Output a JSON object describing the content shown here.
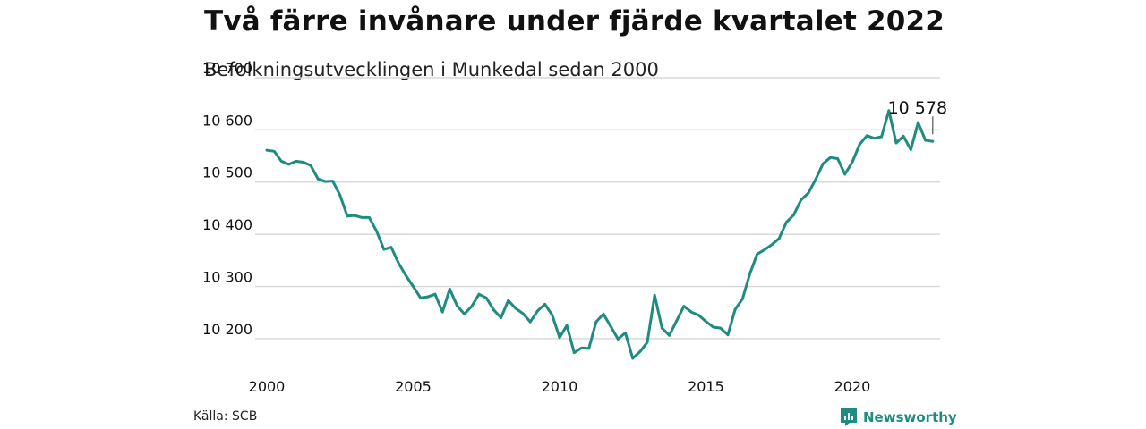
{
  "header": {
    "title": "Två färre invånare under fjärde kvartalet 2022",
    "subtitle": "Befolkningsutvecklingen i Munkedal sedan 2000"
  },
  "footer": {
    "source": "Källa: SCB",
    "brand": "Newsworthy",
    "brand_color": "#1e8c7e"
  },
  "chart_data": {
    "type": "line",
    "title": "Två färre invånare under fjärde kvartalet 2022",
    "subtitle": "Befolkningsutvecklingen i Munkedal sedan 2000",
    "xlabel": "",
    "ylabel": "",
    "x_unit": "quarter",
    "xlim": [
      2000.0,
      2023.0
    ],
    "ylim": [
      10150,
      10700
    ],
    "yticks": [
      10200,
      10300,
      10400,
      10500,
      10600,
      10700
    ],
    "ytick_labels": [
      "10 200",
      "10 300",
      "10 400",
      "10 500",
      "10 600",
      "10 700"
    ],
    "xticks": [
      2000,
      2005,
      2010,
      2015,
      2020
    ],
    "xtick_labels": [
      "2000",
      "2005",
      "2010",
      "2015",
      "2020"
    ],
    "grid": true,
    "line_color": "#1e8c7e",
    "annotation": {
      "text": "10 578",
      "x": "2022-Q4",
      "y": 10578
    },
    "series": [
      {
        "x": [
          "2000-Q1",
          "2000-Q2",
          "2000-Q3",
          "2000-Q4",
          "2001-Q1",
          "2001-Q2",
          "2001-Q3",
          "2001-Q4",
          "2002-Q1",
          "2002-Q2",
          "2002-Q3",
          "2002-Q4",
          "2003-Q1",
          "2003-Q2",
          "2003-Q3",
          "2003-Q4",
          "2004-Q1",
          "2004-Q2",
          "2004-Q3",
          "2004-Q4",
          "2005-Q1",
          "2005-Q2",
          "2005-Q3",
          "2005-Q4",
          "2006-Q1",
          "2006-Q2",
          "2006-Q3",
          "2006-Q4",
          "2007-Q1",
          "2007-Q2",
          "2007-Q3",
          "2007-Q4",
          "2008-Q1",
          "2008-Q2",
          "2008-Q3",
          "2008-Q4",
          "2009-Q1",
          "2009-Q2",
          "2009-Q3",
          "2009-Q4",
          "2010-Q1",
          "2010-Q2",
          "2010-Q3",
          "2010-Q4",
          "2011-Q1",
          "2011-Q2",
          "2011-Q3",
          "2011-Q4",
          "2012-Q1",
          "2012-Q2",
          "2012-Q3",
          "2012-Q4",
          "2013-Q1",
          "2013-Q2",
          "2013-Q3",
          "2013-Q4",
          "2014-Q1",
          "2014-Q2",
          "2014-Q3",
          "2014-Q4",
          "2015-Q1",
          "2015-Q2",
          "2015-Q3",
          "2015-Q4",
          "2016-Q1",
          "2016-Q2",
          "2016-Q3",
          "2016-Q4",
          "2017-Q1",
          "2017-Q2",
          "2017-Q3",
          "2017-Q4",
          "2018-Q1",
          "2018-Q2",
          "2018-Q3",
          "2018-Q4",
          "2019-Q1",
          "2019-Q2",
          "2019-Q3",
          "2019-Q4",
          "2020-Q1",
          "2020-Q2",
          "2020-Q3",
          "2020-Q4",
          "2021-Q1",
          "2021-Q2",
          "2021-Q3",
          "2021-Q4",
          "2022-Q1",
          "2022-Q2",
          "2022-Q3",
          "2022-Q4"
        ],
        "values": [
          10561,
          10559,
          10540,
          10534,
          10540,
          10538,
          10532,
          10506,
          10501,
          10502,
          10475,
          10435,
          10436,
          10432,
          10432,
          10406,
          10371,
          10375,
          10345,
          10321,
          10300,
          10278,
          10280,
          10285,
          10251,
          10295,
          10263,
          10247,
          10262,
          10285,
          10278,
          10255,
          10240,
          10273,
          10258,
          10248,
          10232,
          10253,
          10266,
          10245,
          10202,
          10225,
          10173,
          10182,
          10181,
          10232,
          10247,
          10223,
          10199,
          10211,
          10162,
          10175,
          10193,
          10283,
          10220,
          10206,
          10234,
          10262,
          10251,
          10245,
          10233,
          10222,
          10220,
          10207,
          10256,
          10276,
          10324,
          10362,
          10370,
          10380,
          10392,
          10423,
          10437,
          10466,
          10479,
          10505,
          10535,
          10547,
          10545,
          10515,
          10538,
          10572,
          10589,
          10584,
          10587,
          10637,
          10575,
          10588,
          10562,
          10614,
          10580,
          10578
        ]
      }
    ]
  }
}
